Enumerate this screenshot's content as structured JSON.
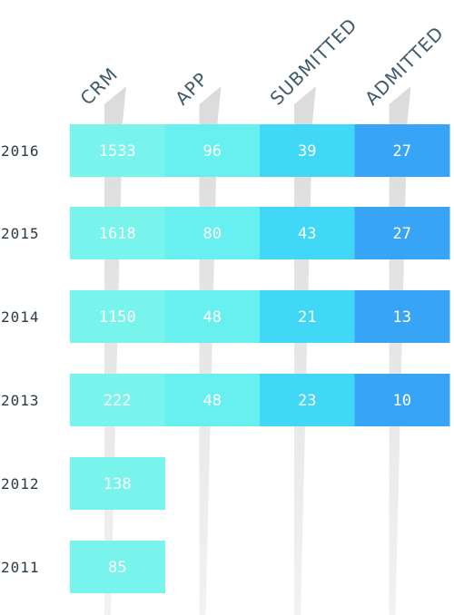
{
  "chart_data": {
    "type": "table",
    "columns": [
      "CRM",
      "APP",
      "SUBMITTED",
      "ADMITTED"
    ],
    "colors": [
      "#78f4ec",
      "#68f0f0",
      "#40d8f6",
      "#38a4f6"
    ],
    "rows": [
      {
        "year": "2016",
        "values": [
          "1533",
          "96",
          "39",
          "27"
        ]
      },
      {
        "year": "2015",
        "values": [
          "1618",
          "80",
          "43",
          "27"
        ]
      },
      {
        "year": "2014",
        "values": [
          "1150",
          "48",
          "21",
          "13"
        ]
      },
      {
        "year": "2013",
        "values": [
          "222",
          "48",
          "23",
          "10"
        ]
      },
      {
        "year": "2012",
        "values": [
          "138"
        ]
      },
      {
        "year": "2011",
        "values": [
          "85"
        ]
      }
    ]
  }
}
